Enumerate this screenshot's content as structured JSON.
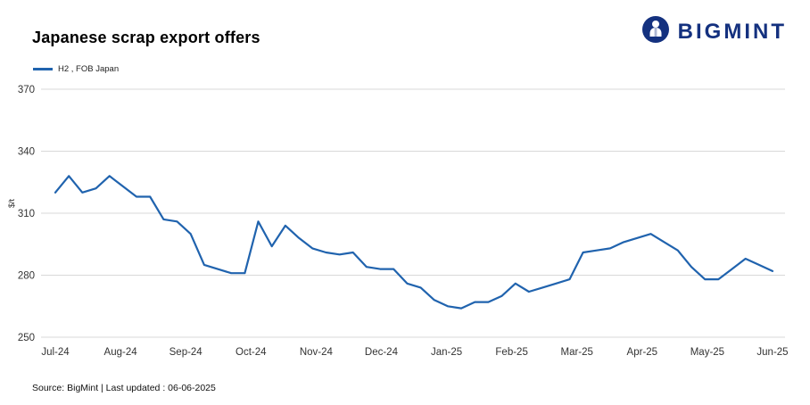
{
  "header": {
    "title": "Japanese scrap export offers",
    "logo_text": "BIGMINT"
  },
  "legend": {
    "label": "H2 , FOB Japan"
  },
  "footer": {
    "text": "Source: BigMint | Last updated : 06-06-2025"
  },
  "colors": {
    "line": "#2063ae",
    "logo": "#14317f",
    "gridline": "#d9d9d9",
    "tick_text": "#333333"
  },
  "chart_data": {
    "type": "line",
    "title": "Japanese scrap export offers",
    "xlabel": "",
    "ylabel": "$/t",
    "ylim": [
      250,
      370
    ],
    "yticks": [
      370,
      340,
      310,
      280,
      250
    ],
    "xticks": [
      "Jul-24",
      "Aug-24",
      "Sep-24",
      "Oct-24",
      "Nov-24",
      "Dec-24",
      "Jan-25",
      "Feb-25",
      "Mar-25",
      "Apr-25",
      "May-25",
      "Jun-25"
    ],
    "grid": "horizontal",
    "legend_position": "top-left",
    "series": [
      {
        "name": "H2 , FOB Japan",
        "color": "#2063ae",
        "values": [
          320,
          328,
          320,
          322,
          328,
          323,
          318,
          318,
          307,
          306,
          300,
          285,
          283,
          281,
          281,
          306,
          294,
          304,
          298,
          293,
          291,
          290,
          291,
          284,
          283,
          283,
          276,
          274,
          268,
          265,
          264,
          267,
          267,
          270,
          276,
          272,
          274,
          276,
          278,
          291,
          292,
          293,
          296,
          298,
          300,
          296,
          292,
          284,
          278,
          278,
          283,
          288,
          285,
          282
        ]
      }
    ]
  }
}
